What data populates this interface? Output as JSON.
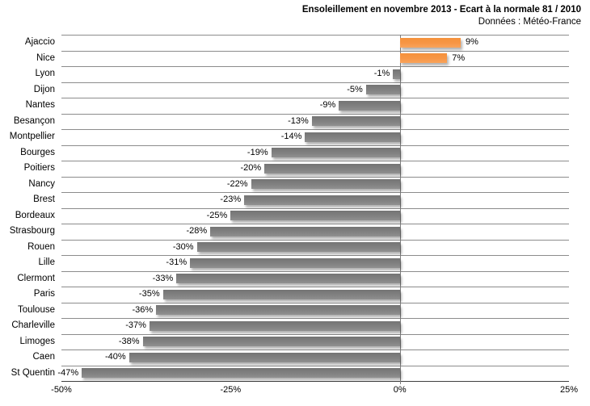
{
  "header": {
    "title": "Ensoleillement en novembre 2013 - Ecart à la normale 81 / 2010",
    "subtitle": "Données : Météo-France"
  },
  "chart_data": {
    "type": "bar",
    "orientation": "horizontal",
    "title": "Ensoleillement en novembre 2013 - Ecart à la normale 81 / 2010",
    "subtitle": "Données : Météo-France",
    "categories": [
      "Ajaccio",
      "Nice",
      "Lyon",
      "Dijon",
      "Nantes",
      "Besançon",
      "Montpellier",
      "Bourges",
      "Poitiers",
      "Nancy",
      "Brest",
      "Bordeaux",
      "Strasbourg",
      "Rouen",
      "Lille",
      "Clermont",
      "Paris",
      "Toulouse",
      "Charleville",
      "Limoges",
      "Caen",
      "St Quentin"
    ],
    "values": [
      9,
      7,
      -1,
      -5,
      -9,
      -13,
      -14,
      -19,
      -20,
      -22,
      -23,
      -25,
      -28,
      -30,
      -31,
      -33,
      -35,
      -36,
      -37,
      -38,
      -40,
      -47
    ],
    "data_labels": [
      "9%",
      "7%",
      "-1%",
      "-5%",
      "-9%",
      "-13%",
      "-14%",
      "-19%",
      "-20%",
      "-22%",
      "-23%",
      "-25%",
      "-28%",
      "-30%",
      "-31%",
      "-33%",
      "-35%",
      "-36%",
      "-37%",
      "-38%",
      "-40%",
      "-47%"
    ],
    "xlim": [
      -50,
      25
    ],
    "x_ticks": [
      {
        "value": -50,
        "label": "-50%"
      },
      {
        "value": -25,
        "label": "-25%"
      },
      {
        "value": 0,
        "label": "0%"
      },
      {
        "value": 25,
        "label": "25%"
      }
    ],
    "legend": "none",
    "grid": "category-separators",
    "colors": {
      "positive_bar": "#F79646",
      "negative_bar": "#7F7F7F",
      "gridline": "#8C8C8C",
      "axis_line": "#3F3F3F",
      "text": "#000000"
    }
  }
}
